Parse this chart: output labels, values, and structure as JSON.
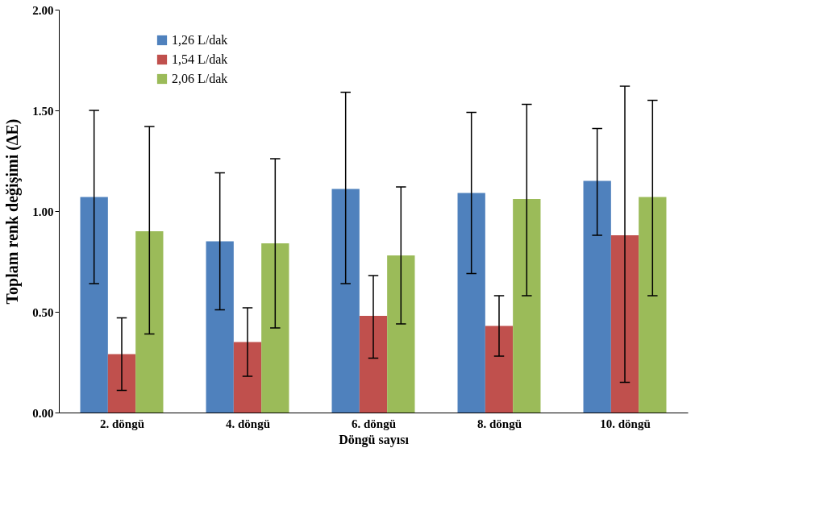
{
  "chart_data": {
    "type": "bar",
    "xlabel": "Döngü sayısı",
    "ylabel": "Toplam renk değişimi (ΔE)",
    "categories": [
      "2. döngü",
      "4. döngü",
      "6. döngü",
      "8. döngü",
      "10. döngü"
    ],
    "series": [
      {
        "name": "1,26 L/dak",
        "color": "#4f81bd",
        "values": [
          1.07,
          0.85,
          1.11,
          1.09,
          1.15
        ],
        "errors": [
          [
            0.64,
            1.5
          ],
          [
            0.51,
            1.19
          ],
          [
            0.64,
            1.59
          ],
          [
            0.69,
            1.49
          ],
          [
            0.88,
            1.41
          ]
        ]
      },
      {
        "name": "1,54 L/dak",
        "color": "#c0504d",
        "values": [
          0.29,
          0.35,
          0.48,
          0.43,
          0.88
        ],
        "errors": [
          [
            0.11,
            0.47
          ],
          [
            0.18,
            0.52
          ],
          [
            0.27,
            0.68
          ],
          [
            0.28,
            0.58
          ],
          [
            0.15,
            1.62
          ]
        ]
      },
      {
        "name": "2,06 L/dak",
        "color": "#9bbb59",
        "values": [
          0.9,
          0.84,
          0.78,
          1.06,
          1.07
        ],
        "errors": [
          [
            0.39,
            1.42
          ],
          [
            0.42,
            1.26
          ],
          [
            0.44,
            1.12
          ],
          [
            0.58,
            1.53
          ],
          [
            0.58,
            1.55
          ]
        ]
      }
    ],
    "ylim": [
      0,
      2
    ],
    "yticks": [
      {
        "value": 0,
        "label": "0.00"
      },
      {
        "value": 0.5,
        "label": "0.50"
      },
      {
        "value": 1,
        "label": "1.00"
      },
      {
        "value": 1.5,
        "label": "1.50"
      },
      {
        "value": 2,
        "label": "2.00"
      }
    ],
    "grid": false,
    "legend": "top left"
  }
}
